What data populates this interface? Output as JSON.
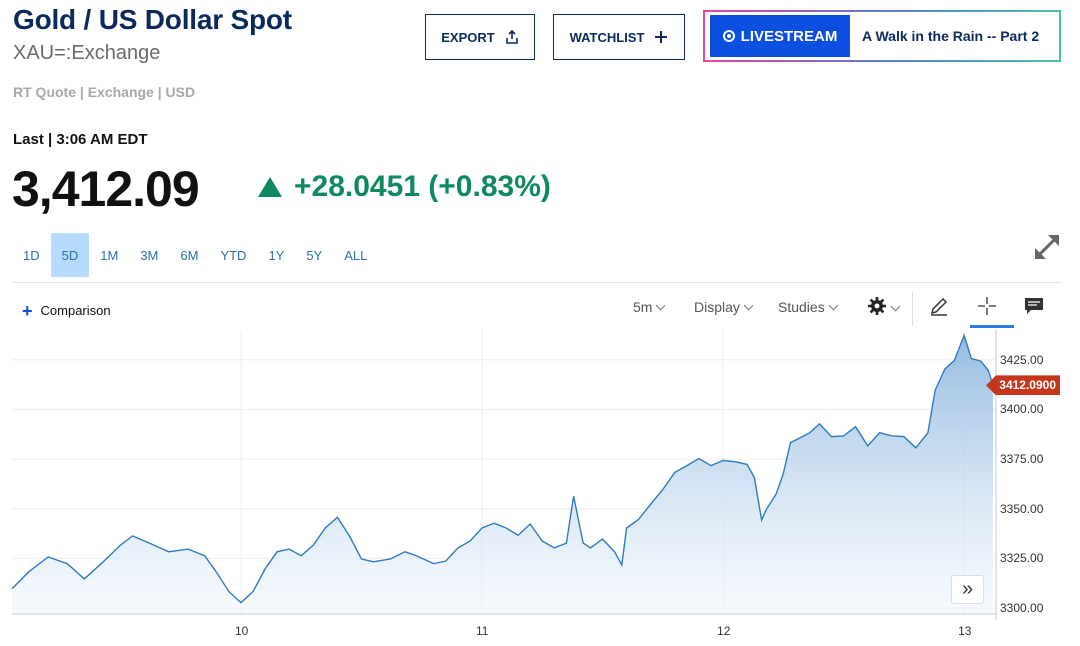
{
  "header": {
    "title": "Gold / US Dollar Spot",
    "symbol": "XAU=:Exchange",
    "meta": "RT Quote | Exchange | USD"
  },
  "actions": {
    "export_label": "EXPORT",
    "watchlist_label": "WATCHLIST",
    "live_label": "LIVESTREAM",
    "live_title": "A Walk in the Rain -- Part 2"
  },
  "quote": {
    "last_label": "Last | 3:06 AM EDT",
    "price": "3,412.09",
    "change": "+28.0451 (+0.83%)",
    "direction": "up",
    "up_color": "#0f8a5f"
  },
  "ranges": [
    "1D",
    "5D",
    "1M",
    "3M",
    "6M",
    "YTD",
    "1Y",
    "5Y",
    "ALL"
  ],
  "active_range": "5D",
  "toolbar": {
    "comparison_label": "Comparison",
    "interval": "5m",
    "display": "Display",
    "studies": "Studies",
    "icons": [
      "gear-icon",
      "pencil-icon",
      "crosshair-icon",
      "comment-icon"
    ]
  },
  "chart_data": {
    "type": "area",
    "title": "",
    "xlabel": "",
    "ylabel": "",
    "x_ticks": [
      "10",
      "11",
      "12",
      "13"
    ],
    "y_ticks": [
      "3425.00",
      "3400.00",
      "3375.00",
      "3350.00",
      "3325.00",
      "3300.00"
    ],
    "ylim": [
      3297,
      3440
    ],
    "x_start_day": 9.05,
    "x_end_day": 13.12,
    "current_value_label": "3412.0900",
    "current_value": 3412.09,
    "line_color": "#2f7ac0",
    "series": [
      {
        "values": [
          [
            9.05,
            3310
          ],
          [
            9.12,
            3318
          ],
          [
            9.2,
            3326
          ],
          [
            9.28,
            3322
          ],
          [
            9.35,
            3315
          ],
          [
            9.42,
            3322
          ],
          [
            9.5,
            3332
          ],
          [
            9.55,
            3336
          ],
          [
            9.62,
            3333
          ],
          [
            9.7,
            3328
          ],
          [
            9.78,
            3330
          ],
          [
            9.85,
            3326
          ],
          [
            9.9,
            3318
          ],
          [
            9.95,
            3308
          ],
          [
            10.0,
            3303
          ],
          [
            10.05,
            3308
          ],
          [
            10.1,
            3320
          ],
          [
            10.15,
            3328
          ],
          [
            10.2,
            3330
          ],
          [
            10.25,
            3326
          ],
          [
            10.3,
            3332
          ],
          [
            10.35,
            3340
          ],
          [
            10.4,
            3346
          ],
          [
            10.45,
            3336
          ],
          [
            10.5,
            3325
          ],
          [
            10.55,
            3323
          ],
          [
            10.62,
            3325
          ],
          [
            10.68,
            3328
          ],
          [
            10.72,
            3327
          ],
          [
            10.8,
            3322
          ],
          [
            10.85,
            3324
          ],
          [
            10.9,
            3330
          ],
          [
            10.95,
            3334
          ],
          [
            11.0,
            3340
          ],
          [
            11.05,
            3343
          ],
          [
            11.1,
            3340
          ],
          [
            11.15,
            3337
          ],
          [
            11.2,
            3342
          ],
          [
            11.25,
            3334
          ],
          [
            11.3,
            3330
          ],
          [
            11.35,
            3333
          ],
          [
            11.38,
            3356
          ],
          [
            11.42,
            3333
          ],
          [
            11.45,
            3330
          ],
          [
            11.5,
            3335
          ],
          [
            11.55,
            3328
          ],
          [
            11.58,
            3322
          ],
          [
            11.6,
            3340
          ],
          [
            11.65,
            3345
          ],
          [
            11.7,
            3352
          ],
          [
            11.75,
            3360
          ],
          [
            11.8,
            3368
          ],
          [
            11.85,
            3372
          ],
          [
            11.9,
            3375
          ],
          [
            11.95,
            3372
          ],
          [
            12.0,
            3374
          ],
          [
            12.05,
            3374
          ],
          [
            12.1,
            3372
          ],
          [
            12.13,
            3366
          ],
          [
            12.16,
            3344
          ],
          [
            12.18,
            3350
          ],
          [
            12.22,
            3357
          ],
          [
            12.25,
            3368
          ],
          [
            12.28,
            3383
          ],
          [
            12.32,
            3386
          ],
          [
            12.36,
            3388
          ],
          [
            12.4,
            3393
          ],
          [
            12.45,
            3386
          ],
          [
            12.5,
            3387
          ],
          [
            12.55,
            3391
          ],
          [
            12.6,
            3382
          ],
          [
            12.65,
            3388
          ],
          [
            12.7,
            3387
          ],
          [
            12.75,
            3386
          ],
          [
            12.8,
            3381
          ],
          [
            12.85,
            3388
          ],
          [
            12.88,
            3410
          ],
          [
            12.92,
            3420
          ],
          [
            12.96,
            3425
          ],
          [
            13.0,
            3437
          ],
          [
            13.03,
            3426
          ],
          [
            13.07,
            3424
          ],
          [
            13.1,
            3420
          ],
          [
            13.12,
            3412.09
          ]
        ]
      }
    ]
  }
}
